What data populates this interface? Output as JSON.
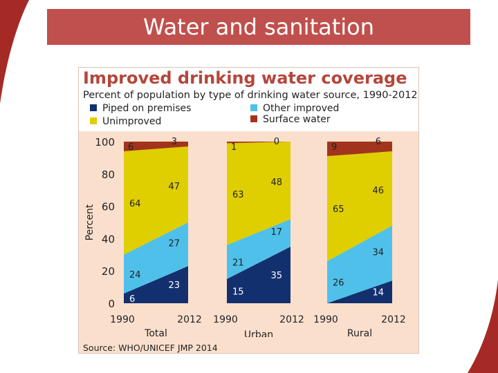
{
  "page_title": "Water and sanitation",
  "chart_data": {
    "type": "area",
    "title": "Improved drinking water coverage",
    "subtitle": "Percent of population by type of drinking water source, 1990-2012",
    "ylabel": "Percent",
    "ylim": [
      0,
      100
    ],
    "yticks": [
      "0",
      "20",
      "40",
      "60",
      "80",
      "100"
    ],
    "source": "Source:  WHO/UNICEF JMP 2014",
    "series_colors": {
      "Piped on premises": "#13306e",
      "Other improved": "#4fc0ea",
      "Unimproved": "#dfce00",
      "Surface water": "#a2341d"
    },
    "legend": [
      "Piped on premises",
      "Other improved",
      "Unimproved",
      "Surface water"
    ],
    "groups": [
      {
        "name": "Total",
        "x": [
          "1990",
          "2012"
        ],
        "series": [
          {
            "name": "Piped on premises",
            "values": [
              6,
              23
            ]
          },
          {
            "name": "Other improved",
            "values": [
              24,
              27
            ]
          },
          {
            "name": "Unimproved",
            "values": [
              64,
              47
            ]
          },
          {
            "name": "Surface water",
            "values": [
              6,
              3
            ]
          }
        ]
      },
      {
        "name": "Urban",
        "x": [
          "1990",
          "2012"
        ],
        "series": [
          {
            "name": "Piped on premises",
            "values": [
              15,
              35
            ]
          },
          {
            "name": "Other improved",
            "values": [
              21,
              17
            ]
          },
          {
            "name": "Unimproved",
            "values": [
              63,
              48
            ]
          },
          {
            "name": "Surface water",
            "values": [
              1,
              0
            ]
          }
        ]
      },
      {
        "name": "Rural",
        "x": [
          "1990",
          "2012"
        ],
        "series": [
          {
            "name": "Piped on premises",
            "values": [
              0,
              14
            ]
          },
          {
            "name": "Other improved",
            "values": [
              26,
              34
            ]
          },
          {
            "name": "Unimproved",
            "values": [
              65,
              46
            ]
          },
          {
            "name": "Surface water",
            "values": [
              9,
              6
            ]
          }
        ]
      }
    ]
  }
}
